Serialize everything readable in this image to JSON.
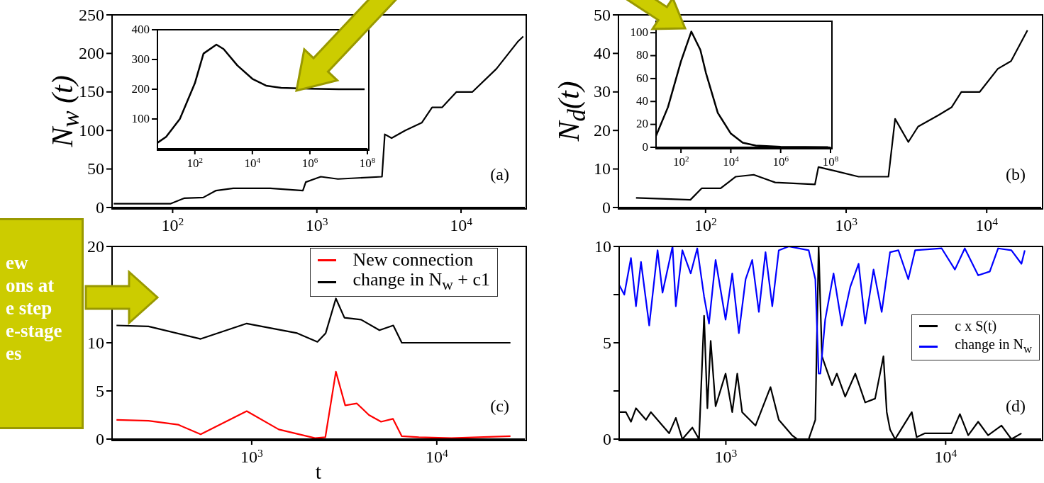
{
  "chart_data": [
    {
      "type": "line",
      "ylabel": "N$_{w}$ (t)",
      "log": "x",
      "legend": false,
      "marker": "none",
      "line_style": "solid",
      "annotations": [
        "(a)"
      ],
      "xlim": [
        38,
        27700
      ],
      "xticks": [
        {
          "value": 100,
          "label": "10$^{2}$"
        },
        {
          "value": 1000,
          "label": "10$^{3}$"
        },
        {
          "value": 10000,
          "label": "10$^{4}$"
        }
      ],
      "ylim": [
        0,
        250
      ],
      "yticks": [
        0,
        50,
        100,
        150,
        200,
        250
      ],
      "series": [
        {
          "color": "#000000",
          "x": [
            39,
            97,
            120,
            163,
            200,
            263,
            475,
            800,
            838,
            1065,
            1400,
            2830,
            2960,
            3300,
            4100,
            5340,
            6300,
            7400,
            9300,
            12000,
            17600,
            24700,
            27000
          ],
          "values": [
            5,
            5,
            12,
            13,
            22,
            25,
            25,
            22,
            33,
            40,
            37,
            40,
            95,
            90,
            100,
            110,
            130,
            130,
            150,
            150,
            180,
            215,
            222
          ]
        }
      ]
    },
    {
      "type": "line",
      "log": "x",
      "legend": false,
      "marker": "none",
      "line_style": "solid",
      "xlim": [
        5,
        100000000
      ],
      "xticks": [
        {
          "value": 100,
          "label": "10$^{2}$"
        },
        {
          "value": 10000,
          "label": "10$^{4}$"
        },
        {
          "value": 1000000,
          "label": "10$^{6}$"
        },
        {
          "value": 100000000,
          "label": "10$^{8}$"
        }
      ],
      "ylim": [
        0,
        400
      ],
      "yticks": [
        100,
        200,
        300,
        400
      ],
      "series": [
        {
          "color": "#000000",
          "x": [
            5,
            10,
            30,
            100,
            200,
            560,
            1000,
            3000,
            10000,
            30000,
            100000,
            1000000,
            10000000,
            80000000
          ],
          "values": [
            20,
            40,
            100,
            220,
            320,
            350,
            335,
            280,
            235,
            212,
            205,
            202,
            200,
            200
          ]
        }
      ]
    },
    {
      "type": "line",
      "ylabel": "N$_{d}$(t)",
      "log": "x",
      "legend": false,
      "marker": "none",
      "line_style": "solid",
      "annotations": [
        "(b)"
      ],
      "xlim": [
        24,
        24400
      ],
      "xticks": [
        {
          "value": 100,
          "label": "10$^{2}$"
        },
        {
          "value": 1000,
          "label": "10$^{3}$"
        },
        {
          "value": 10000,
          "label": "10$^{4}$"
        }
      ],
      "ylim": [
        0,
        50
      ],
      "yticks": [
        0,
        10,
        20,
        30,
        40,
        50
      ],
      "series": [
        {
          "color": "#000000",
          "x": [
            32,
            78,
            94,
            128,
            164,
            220,
            313,
            600,
            635,
            835,
            1225,
            2000,
            2230,
            2770,
            3250,
            4550,
            5620,
            6600,
            8920,
            12000,
            14900,
            19500
          ],
          "values": [
            2.5,
            2,
            5,
            5,
            8,
            8.5,
            6.5,
            6,
            10.5,
            9.5,
            8,
            8,
            23,
            17,
            21,
            24,
            26,
            30,
            30,
            36,
            38,
            46
          ]
        }
      ]
    },
    {
      "type": "line",
      "log": "x",
      "legend": false,
      "marker": "none",
      "line_style": "solid",
      "xlim": [
        10,
        100000000
      ],
      "xticks": [
        {
          "value": 100,
          "label": "10$^{2}$"
        },
        {
          "value": 10000,
          "label": "10$^{4}$"
        },
        {
          "value": 1000000,
          "label": "10$^{6}$"
        },
        {
          "value": 100000000,
          "label": "10$^{8}$"
        }
      ],
      "ylim": [
        0,
        110
      ],
      "yticks": [
        0,
        20,
        40,
        60,
        80,
        100
      ],
      "series": [
        {
          "color": "#000000",
          "x": [
            10,
            30,
            100,
            260,
            600,
            1000,
            3000,
            10000,
            30000,
            100000,
            1000000,
            10000000,
            80000000
          ],
          "values": [
            10,
            35,
            75,
            101,
            85,
            65,
            30,
            12,
            4,
            1.5,
            0.5,
            0.3,
            0.2
          ]
        }
      ]
    },
    {
      "type": "line",
      "xlabel": "t",
      "log": "x",
      "legend": "top right",
      "marker": "none",
      "line_style": "solid",
      "annotations": [
        "(c)",
        "ew\nons at\ne step\ne-stage\nes"
      ],
      "xlim": [
        176,
        29900
      ],
      "xticks": [
        {
          "value": 1000,
          "label": "10$^{3}$"
        },
        {
          "value": 10000,
          "label": "10$^{4}$"
        }
      ],
      "ylim": [
        0,
        20
      ],
      "yticks": [
        0,
        5,
        10,
        {
          "value": 15,
          "label": null
        },
        20
      ],
      "series": [
        {
          "name": "New connection",
          "color": "#ff0000",
          "x": [
            186,
            277,
            400,
            530,
            940,
            1400,
            2200,
            2500,
            2850,
            3200,
            3700,
            4300,
            5000,
            5800,
            6470,
            8000,
            12000,
            25000
          ],
          "values": [
            2,
            1.9,
            1.5,
            0.5,
            2.9,
            1,
            0.1,
            0.2,
            7,
            3.5,
            3.7,
            2.5,
            1.8,
            2.1,
            0.3,
            0.2,
            0.1,
            0.3
          ]
        },
        {
          "name": "change in N$_{w}$ + c1",
          "color": "#000000",
          "x": [
            186,
            277,
            530,
            940,
            1760,
            2265,
            2510,
            2850,
            3170,
            3900,
            4900,
            5820,
            6470,
            25000
          ],
          "values": [
            11.8,
            11.7,
            10.4,
            12,
            11,
            10.1,
            11,
            14.6,
            12.6,
            12.4,
            11.3,
            11.8,
            10,
            10
          ]
        }
      ]
    },
    {
      "type": "line",
      "log": "x",
      "legend": "right",
      "marker": "none",
      "line_style": "solid",
      "annotations": [
        "(d)"
      ],
      "xlim": [
        327,
        27200
      ],
      "xticks": [
        {
          "value": 1000,
          "label": "10$^{3}$"
        },
        {
          "value": 10000,
          "label": "10$^{4}$"
        }
      ],
      "ylim": [
        0,
        10
      ],
      "yticks": [
        0,
        {
          "value": 2.5,
          "label": null
        },
        5,
        {
          "value": 7.5,
          "label": null
        },
        10
      ],
      "series": [
        {
          "name": "c x S(t)",
          "color": "#000000",
          "x": [
            327,
            351,
            370,
            390,
            433,
            456,
            515,
            552,
            592,
            634,
            704,
            755,
            796,
            824,
            853,
            898,
            997,
            1069,
            1127,
            1186,
            1365,
            1596,
            1741,
            2000,
            2109,
            2382,
            2553,
            2643,
            2736,
            3041,
            3199,
            3491,
            3882,
            4306,
            4775,
            5212,
            5395,
            5585,
            5888,
            7015,
            7379,
            8054,
            10640,
            11610,
            12670,
            14060,
            15600,
            17950,
            19910,
            22130
          ],
          "values": [
            1.4,
            1.4,
            0.9,
            1.6,
            1,
            1.4,
            0.7,
            0.3,
            1.1,
            0,
            0.6,
            0,
            6.4,
            1.6,
            5.1,
            1.7,
            3.4,
            1.4,
            3.4,
            1.4,
            0.7,
            2.7,
            1,
            0.2,
            0,
            0,
            1,
            10,
            4.3,
            2.8,
            3.4,
            2.2,
            3.4,
            1.9,
            2.1,
            4.3,
            1.4,
            0.5,
            0,
            1.4,
            0.1,
            0.3,
            0.3,
            1.3,
            0.2,
            0.9,
            0.2,
            0.7,
            0,
            0.3
          ]
        },
        {
          "name": "change in N$_{w}$",
          "color": "#0000ff",
          "x": [
            327,
            345,
            370,
            390,
            411,
            448,
            489,
            515,
            572,
            592,
            634,
            692,
            741,
            796,
            838,
            898,
            997,
            1069,
            1146,
            1230,
            1318,
            1413,
            1515,
            1626,
            1741,
            1932,
            2382,
            2553,
            2643,
            2692,
            2831,
            3090,
            3373,
            3681,
            4018,
            4306,
            4699,
            5117,
            5585,
            6095,
            6761,
            7261,
            9594,
            11020,
            12220,
            14060,
            15880,
            17330,
            19910,
            22130,
            22910
          ],
          "values": [
            8,
            7.5,
            9.4,
            6.9,
            9.2,
            5.9,
            9.8,
            7.6,
            10,
            6.9,
            9.8,
            8.6,
            9.9,
            7.4,
            6,
            9.3,
            6.2,
            8.6,
            5.5,
            8.3,
            9.3,
            6.6,
            9.7,
            6.9,
            9.8,
            10,
            9.8,
            8.3,
            3.4,
            3.4,
            6.2,
            8.6,
            5.9,
            7.9,
            9.1,
            6,
            8.8,
            6.6,
            9.7,
            9.8,
            8.3,
            9.8,
            9.9,
            8.8,
            9.9,
            8.5,
            8.7,
            9.9,
            9.8,
            9.1,
            9.8
          ]
        }
      ]
    }
  ]
}
